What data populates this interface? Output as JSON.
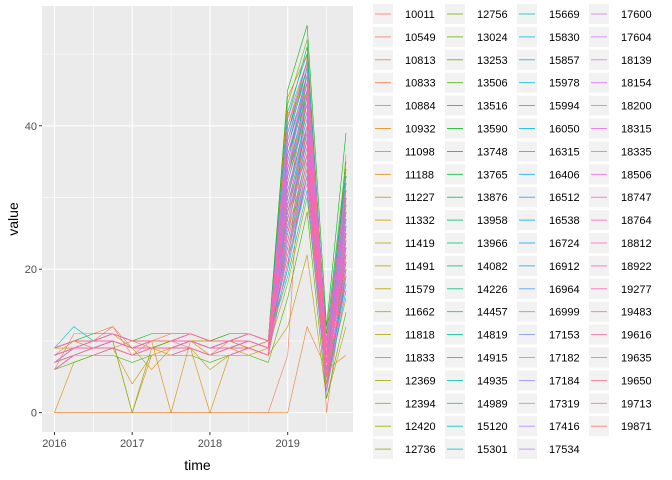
{
  "chart_data": {
    "type": "line",
    "xlabel": "time",
    "ylabel": "value",
    "xlim": [
      2015.84,
      2019.84
    ],
    "ylim": [
      -2.7,
      56.7
    ],
    "x_ticks": [
      2016,
      2017,
      2018,
      2019
    ],
    "x_tick_labels": [
      "2016",
      "2017",
      "2018",
      "2019"
    ],
    "y_ticks": [
      0,
      20,
      40
    ],
    "y_tick_labels": [
      "0",
      "20",
      "40"
    ],
    "x": [
      2016,
      2016.25,
      2016.5,
      2016.75,
      2017,
      2017.25,
      2017.5,
      2017.75,
      2018,
      2018.25,
      2018.5,
      2018.75,
      2019,
      2019.25,
      2019.5,
      2019.75
    ],
    "grid": true,
    "legend_position": "right",
    "series_names": [
      "10011",
      "10549",
      "10813",
      "10833",
      "10884",
      "10932",
      "11098",
      "11188",
      "11227",
      "11332",
      "11419",
      "11491",
      "11579",
      "11662",
      "11818",
      "11833",
      "12369",
      "12394",
      "12420",
      "12736",
      "12756",
      "13024",
      "13253",
      "13506",
      "13516",
      "13590",
      "13748",
      "13765",
      "13876",
      "13958",
      "13966",
      "14082",
      "14226",
      "14457",
      "14819",
      "14915",
      "14935",
      "14989",
      "15120",
      "15301",
      "15669",
      "15830",
      "15857",
      "15978",
      "15994",
      "16050",
      "16315",
      "16406",
      "16512",
      "16538",
      "16724",
      "16912",
      "16964",
      "16999",
      "17153",
      "17182",
      "17184",
      "17319",
      "17416",
      "17534",
      "17600",
      "17604",
      "18139",
      "18154",
      "18200",
      "18315",
      "18335",
      "18506",
      "18747",
      "18764",
      "18812",
      "18922",
      "19277",
      "19483",
      "19616",
      "19635",
      "19650",
      "19713",
      "19871"
    ],
    "value_rows": [
      [
        9,
        10,
        10,
        12,
        8,
        10,
        10,
        9,
        8,
        10,
        9,
        10,
        36,
        46,
        7,
        28
      ],
      [
        0,
        0,
        0,
        0,
        0,
        0,
        0,
        0,
        0,
        0,
        0,
        0,
        8,
        50,
        0,
        20
      ],
      [
        8,
        10,
        9,
        9,
        10,
        9,
        10,
        10,
        9,
        10,
        10,
        9,
        42,
        38,
        5,
        30
      ],
      [
        6,
        11,
        11,
        12,
        9,
        10,
        11,
        11,
        10,
        11,
        11,
        10,
        30,
        44,
        8,
        26
      ],
      [
        0,
        0,
        0,
        0,
        0,
        0,
        0,
        0,
        0,
        0,
        0,
        0,
        0,
        12,
        6,
        8
      ],
      [
        7,
        9,
        10,
        10,
        0,
        8,
        9,
        10,
        8,
        9,
        10,
        9,
        25,
        40,
        3,
        22
      ],
      [
        8,
        9,
        9,
        10,
        9,
        6,
        9,
        9,
        0,
        8,
        9,
        8,
        38,
        48,
        9,
        34
      ],
      [
        9,
        10,
        10,
        11,
        10,
        10,
        0,
        10,
        10,
        10,
        9,
        10,
        20,
        45,
        4,
        24
      ],
      [
        0,
        7,
        8,
        9,
        8,
        9,
        8,
        9,
        8,
        9,
        8,
        9,
        28,
        36,
        6,
        18
      ],
      [
        9,
        10,
        10,
        11,
        9,
        10,
        10,
        11,
        10,
        10,
        11,
        10,
        44,
        50,
        5,
        36
      ],
      [
        8,
        9,
        9,
        10,
        9,
        9,
        9,
        10,
        9,
        9,
        10,
        9,
        33,
        42,
        7,
        28
      ],
      [
        7,
        8,
        8,
        9,
        4,
        8,
        8,
        9,
        6,
        8,
        9,
        8,
        12,
        22,
        2,
        12
      ],
      [
        9,
        10,
        10,
        11,
        10,
        10,
        10,
        11,
        10,
        10,
        11,
        10,
        40,
        49,
        8,
        30
      ],
      [
        8,
        9,
        10,
        10,
        9,
        9,
        10,
        10,
        9,
        10,
        10,
        9,
        26,
        38,
        6,
        22
      ],
      [
        7,
        8,
        9,
        9,
        8,
        9,
        9,
        9,
        8,
        9,
        9,
        8,
        34,
        46,
        10,
        32
      ],
      [
        9,
        9,
        9,
        10,
        9,
        10,
        10,
        10,
        10,
        10,
        10,
        9,
        18,
        30,
        4,
        16
      ],
      [
        8,
        9,
        9,
        10,
        9,
        9,
        9,
        10,
        9,
        9,
        10,
        9,
        31,
        41,
        5,
        25
      ],
      [
        6,
        8,
        9,
        9,
        8,
        9,
        9,
        9,
        8,
        9,
        9,
        8,
        35,
        47,
        7,
        26
      ],
      [
        8,
        9,
        10,
        10,
        9,
        9,
        10,
        10,
        9,
        10,
        10,
        9,
        43,
        52,
        9,
        33
      ],
      [
        9,
        10,
        10,
        11,
        10,
        10,
        10,
        11,
        10,
        10,
        11,
        10,
        22,
        34,
        3,
        20
      ],
      [
        7,
        9,
        9,
        10,
        0,
        9,
        9,
        10,
        9,
        9,
        10,
        9,
        27,
        39,
        6,
        21
      ],
      [
        8,
        9,
        10,
        10,
        9,
        9,
        10,
        10,
        9,
        10,
        10,
        9,
        36,
        44,
        8,
        28
      ],
      [
        9,
        10,
        10,
        11,
        10,
        10,
        10,
        11,
        10,
        10,
        11,
        10,
        24,
        36,
        5,
        23
      ],
      [
        6,
        7,
        8,
        8,
        7,
        8,
        8,
        8,
        7,
        8,
        8,
        7,
        16,
        28,
        2,
        14
      ],
      [
        8,
        9,
        9,
        10,
        9,
        9,
        9,
        10,
        9,
        9,
        10,
        9,
        39,
        48,
        11,
        35
      ],
      [
        9,
        10,
        11,
        11,
        10,
        11,
        11,
        11,
        10,
        11,
        11,
        10,
        45,
        54,
        12,
        39
      ],
      [
        7,
        8,
        9,
        9,
        8,
        9,
        9,
        9,
        8,
        9,
        9,
        8,
        29,
        40,
        6,
        24
      ],
      [
        8,
        9,
        9,
        10,
        9,
        9,
        9,
        10,
        9,
        9,
        10,
        9,
        33,
        45,
        7,
        29
      ],
      [
        6,
        8,
        8,
        9,
        8,
        8,
        8,
        9,
        8,
        8,
        9,
        8,
        21,
        33,
        4,
        19
      ],
      [
        9,
        10,
        10,
        11,
        10,
        10,
        10,
        11,
        10,
        10,
        11,
        10,
        37,
        47,
        9,
        31
      ],
      [
        7,
        9,
        9,
        10,
        9,
        9,
        9,
        10,
        9,
        9,
        10,
        9,
        26,
        37,
        5,
        22
      ],
      [
        8,
        9,
        10,
        10,
        9,
        10,
        10,
        10,
        9,
        10,
        10,
        9,
        32,
        43,
        8,
        27
      ],
      [
        9,
        10,
        10,
        11,
        10,
        10,
        10,
        11,
        10,
        10,
        11,
        10,
        41,
        51,
        10,
        34
      ],
      [
        8,
        9,
        9,
        10,
        9,
        9,
        9,
        10,
        9,
        9,
        10,
        9,
        23,
        35,
        4,
        20
      ],
      [
        7,
        8,
        8,
        9,
        8,
        8,
        8,
        9,
        8,
        8,
        9,
        8,
        34,
        44,
        6,
        26
      ],
      [
        9,
        10,
        10,
        11,
        10,
        10,
        10,
        11,
        10,
        10,
        11,
        10,
        28,
        39,
        7,
        24
      ],
      [
        6,
        8,
        9,
        9,
        8,
        9,
        9,
        9,
        8,
        9,
        9,
        8,
        38,
        48,
        9,
        30
      ],
      [
        8,
        9,
        10,
        10,
        9,
        10,
        10,
        10,
        9,
        10,
        10,
        9,
        30,
        42,
        5,
        25
      ],
      [
        9,
        12,
        10,
        11,
        10,
        10,
        10,
        11,
        10,
        10,
        11,
        10,
        19,
        31,
        3,
        17
      ],
      [
        7,
        9,
        9,
        10,
        9,
        9,
        9,
        10,
        9,
        9,
        10,
        9,
        35,
        46,
        8,
        28
      ],
      [
        8,
        9,
        9,
        10,
        9,
        9,
        9,
        10,
        9,
        9,
        10,
        9,
        27,
        38,
        6,
        23
      ],
      [
        9,
        10,
        10,
        11,
        10,
        10,
        10,
        11,
        10,
        10,
        11,
        10,
        42,
        50,
        10,
        33
      ],
      [
        7,
        8,
        9,
        9,
        8,
        9,
        9,
        9,
        8,
        9,
        9,
        8,
        24,
        35,
        4,
        21
      ],
      [
        8,
        9,
        10,
        10,
        9,
        10,
        10,
        10,
        9,
        10,
        10,
        9,
        36,
        45,
        7,
        29
      ],
      [
        6,
        8,
        8,
        9,
        8,
        8,
        8,
        9,
        8,
        8,
        9,
        8,
        31,
        41,
        6,
        25
      ],
      [
        9,
        10,
        10,
        11,
        10,
        10,
        10,
        11,
        10,
        10,
        11,
        10,
        20,
        33,
        5,
        18
      ],
      [
        8,
        9,
        9,
        10,
        9,
        9,
        9,
        10,
        9,
        9,
        10,
        9,
        39,
        49,
        9,
        32
      ],
      [
        7,
        9,
        9,
        10,
        9,
        9,
        9,
        10,
        9,
        9,
        10,
        9,
        28,
        40,
        5,
        24
      ],
      [
        9,
        10,
        10,
        11,
        10,
        10,
        10,
        11,
        10,
        10,
        11,
        10,
        33,
        43,
        8,
        27
      ],
      [
        8,
        9,
        10,
        10,
        9,
        10,
        10,
        10,
        9,
        10,
        10,
        9,
        25,
        36,
        4,
        21
      ],
      [
        6,
        8,
        8,
        9,
        8,
        8,
        8,
        9,
        8,
        8,
        9,
        8,
        37,
        47,
        7,
        30
      ],
      [
        9,
        10,
        10,
        11,
        10,
        10,
        10,
        11,
        10,
        10,
        11,
        10,
        29,
        38,
        6,
        23
      ],
      [
        7,
        8,
        9,
        9,
        8,
        9,
        9,
        9,
        8,
        9,
        9,
        8,
        40,
        48,
        9,
        31
      ],
      [
        8,
        9,
        9,
        10,
        9,
        9,
        9,
        10,
        9,
        9,
        10,
        9,
        22,
        34,
        3,
        19
      ],
      [
        9,
        10,
        10,
        11,
        10,
        10,
        10,
        11,
        10,
        10,
        11,
        10,
        34,
        44,
        7,
        27
      ],
      [
        7,
        9,
        9,
        10,
        9,
        9,
        9,
        10,
        9,
        9,
        10,
        9,
        30,
        41,
        6,
        25
      ],
      [
        8,
        9,
        10,
        10,
        9,
        10,
        10,
        10,
        9,
        10,
        10,
        9,
        26,
        37,
        5,
        22
      ],
      [
        6,
        8,
        8,
        9,
        8,
        8,
        8,
        9,
        8,
        8,
        9,
        8,
        38,
        46,
        8,
        29
      ],
      [
        9,
        10,
        10,
        11,
        10,
        10,
        10,
        11,
        10,
        10,
        11,
        10,
        23,
        33,
        4,
        20
      ],
      [
        8,
        9,
        9,
        10,
        9,
        9,
        9,
        10,
        9,
        9,
        10,
        9,
        35,
        45,
        7,
        28
      ],
      [
        7,
        8,
        9,
        9,
        8,
        9,
        9,
        9,
        8,
        9,
        9,
        8,
        31,
        40,
        6,
        24
      ],
      [
        9,
        10,
        10,
        11,
        10,
        10,
        10,
        11,
        10,
        10,
        11,
        10,
        27,
        39,
        5,
        23
      ],
      [
        8,
        9,
        10,
        10,
        9,
        10,
        10,
        10,
        9,
        10,
        10,
        9,
        39,
        47,
        9,
        31
      ],
      [
        6,
        8,
        8,
        9,
        8,
        8,
        8,
        9,
        8,
        8,
        9,
        8,
        21,
        32,
        3,
        18
      ],
      [
        9,
        10,
        10,
        11,
        10,
        10,
        10,
        11,
        10,
        10,
        11,
        10,
        36,
        46,
        8,
        29
      ],
      [
        7,
        9,
        9,
        10,
        9,
        9,
        9,
        10,
        9,
        9,
        10,
        9,
        29,
        38,
        5,
        24
      ],
      [
        8,
        9,
        9,
        10,
        9,
        9,
        9,
        10,
        9,
        9,
        10,
        9,
        33,
        44,
        7,
        26
      ],
      [
        9,
        10,
        10,
        11,
        10,
        10,
        10,
        11,
        10,
        10,
        11,
        10,
        24,
        35,
        4,
        21
      ],
      [
        7,
        8,
        9,
        9,
        8,
        9,
        9,
        9,
        8,
        9,
        9,
        8,
        41,
        49,
        10,
        32
      ],
      [
        8,
        9,
        10,
        10,
        9,
        10,
        10,
        10,
        9,
        10,
        10,
        9,
        27,
        37,
        6,
        22
      ],
      [
        6,
        8,
        8,
        9,
        8,
        8,
        8,
        9,
        8,
        8,
        9,
        8,
        34,
        43,
        7,
        27
      ],
      [
        9,
        10,
        10,
        11,
        10,
        10,
        10,
        11,
        10,
        10,
        11,
        10,
        30,
        40,
        5,
        25
      ],
      [
        8,
        9,
        9,
        10,
        9,
        9,
        9,
        10,
        9,
        9,
        10,
        9,
        22,
        33,
        4,
        20
      ],
      [
        7,
        9,
        9,
        10,
        9,
        9,
        9,
        10,
        9,
        9,
        10,
        9,
        37,
        46,
        8,
        30
      ],
      [
        9,
        10,
        10,
        11,
        10,
        10,
        10,
        11,
        10,
        10,
        11,
        10,
        25,
        36,
        5,
        22
      ],
      [
        8,
        9,
        10,
        10,
        9,
        10,
        10,
        10,
        9,
        10,
        10,
        9,
        32,
        42,
        6,
        26
      ],
      [
        6,
        8,
        8,
        9,
        8,
        8,
        8,
        9,
        8,
        8,
        9,
        8,
        28,
        39,
        5,
        23
      ],
      [
        9,
        10,
        10,
        11,
        10,
        10,
        10,
        11,
        10,
        10,
        11,
        10,
        40,
        48,
        9,
        31
      ],
      [
        7,
        8,
        9,
        9,
        8,
        9,
        9,
        9,
        8,
        9,
        9,
        8,
        23,
        34,
        4,
        20
      ]
    ]
  }
}
